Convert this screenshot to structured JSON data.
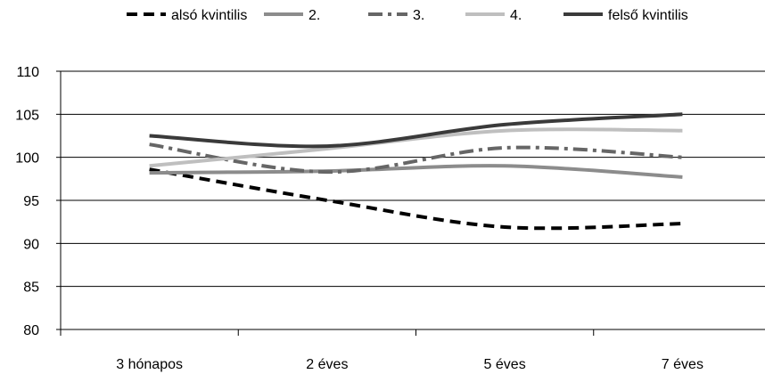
{
  "chart_data": {
    "type": "line",
    "categories": [
      "3 hónapos",
      "2 éves",
      "5 éves",
      "7 éves"
    ],
    "ylim": [
      80,
      110
    ],
    "yticks": [
      80,
      85,
      90,
      95,
      100,
      105,
      110
    ],
    "grid": true,
    "legend_position": "top",
    "series": [
      {
        "name": "alsó kvintilis",
        "values": [
          98.6,
          95.0,
          91.9,
          92.3
        ],
        "color": "#000000",
        "dash": "dashed"
      },
      {
        "name": "2.",
        "values": [
          98.2,
          98.4,
          99.0,
          97.7
        ],
        "color": "#8c8c8c",
        "dash": "solid"
      },
      {
        "name": "3.",
        "values": [
          101.5,
          98.3,
          101.1,
          100.0
        ],
        "color": "#666666",
        "dash": "dashdot"
      },
      {
        "name": "4.",
        "values": [
          99.0,
          101.0,
          103.1,
          103.1
        ],
        "color": "#bfbfbf",
        "dash": "solid"
      },
      {
        "name": "felső kvintilis",
        "values": [
          102.5,
          101.3,
          103.8,
          105.0
        ],
        "color": "#3a3a3a",
        "dash": "solid"
      }
    ]
  }
}
